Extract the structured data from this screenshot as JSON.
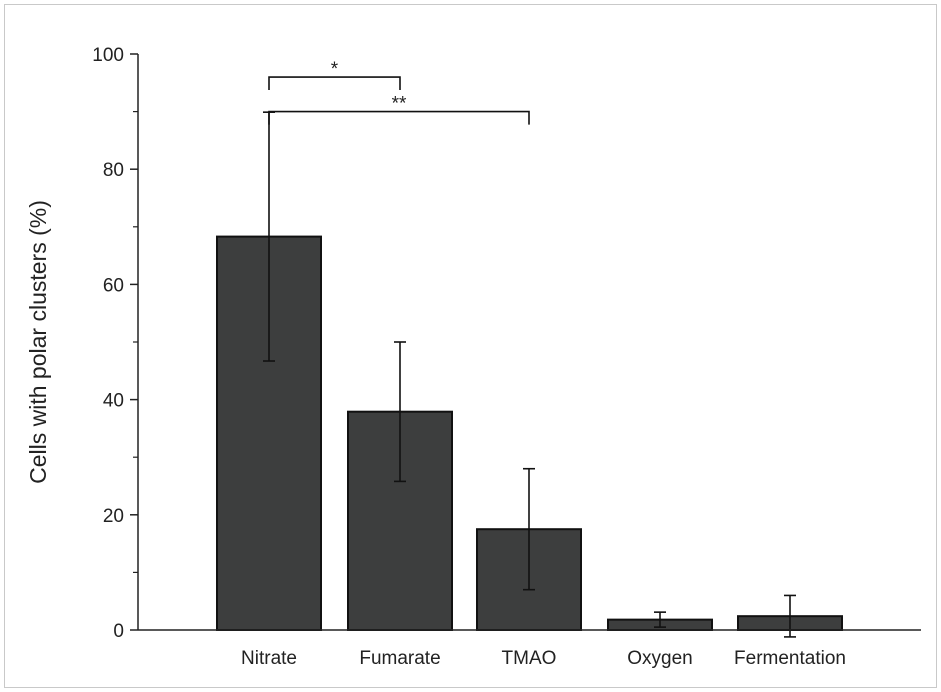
{
  "chart_data": {
    "type": "bar",
    "categories": [
      "Nitrate",
      "Fumarate",
      "TMAO",
      "Oxygen",
      "Fermentation"
    ],
    "values": [
      68.3,
      37.9,
      17.5,
      1.8,
      2.4
    ],
    "error": [
      21.6,
      12.1,
      10.5,
      1.3,
      3.6
    ],
    "ylabel": "Cells with polar clusters (%)",
    "xlabel": "",
    "ylim": [
      0,
      100
    ],
    "yticks": [
      0,
      20,
      40,
      60,
      80,
      100
    ],
    "yminor_ticks": [
      10,
      30,
      50,
      70,
      90
    ],
    "bar_color": "#3d3e3e",
    "significance": [
      {
        "from": "Nitrate",
        "to": "Fumarate",
        "label": "*",
        "y": 96
      },
      {
        "from": "Nitrate",
        "to": "TMAO",
        "label": "**",
        "y": 90
      }
    ],
    "grid": false,
    "legend": "none"
  }
}
